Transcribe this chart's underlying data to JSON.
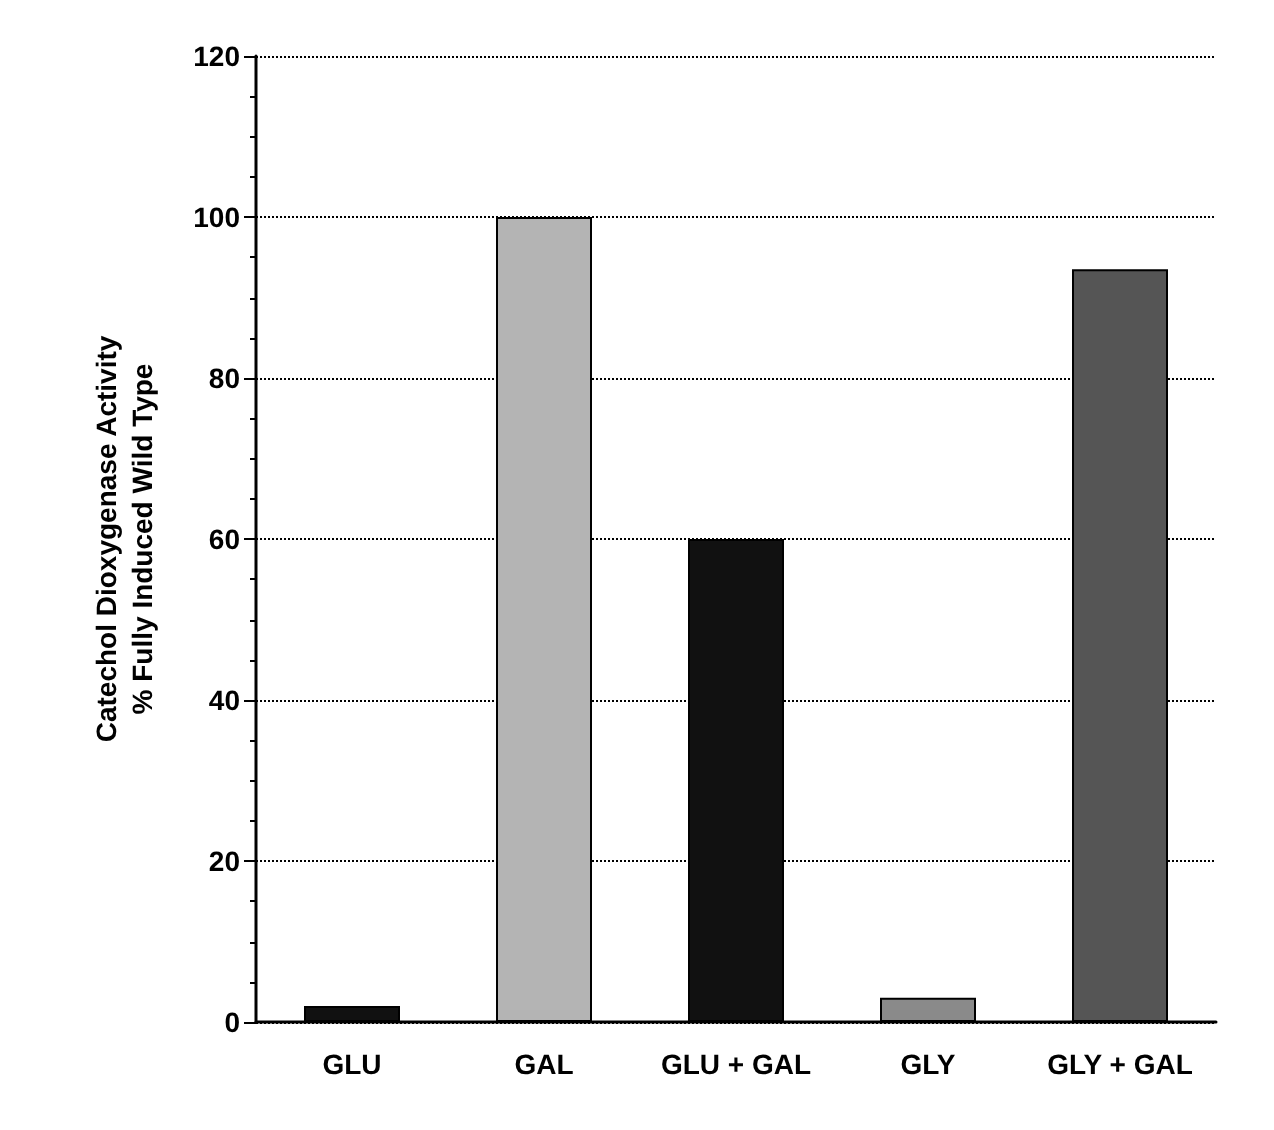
{
  "chart_data": {
    "type": "bar",
    "ylabel": "Catechol Dioxygenase Activity\n% Fully Induced Wild Type",
    "categories": [
      "GLU",
      "GAL",
      "GLU + GAL",
      "GLY",
      "GLY + GAL"
    ],
    "values": [
      2,
      100,
      60,
      3,
      93.5
    ],
    "colors": [
      "#111111",
      "#b4b4b4",
      "#111111",
      "#8a8a8a",
      "#555555"
    ],
    "ylim": [
      0,
      120
    ],
    "yticks": [
      0,
      20,
      40,
      60,
      80,
      100,
      120
    ],
    "grid": "y"
  }
}
